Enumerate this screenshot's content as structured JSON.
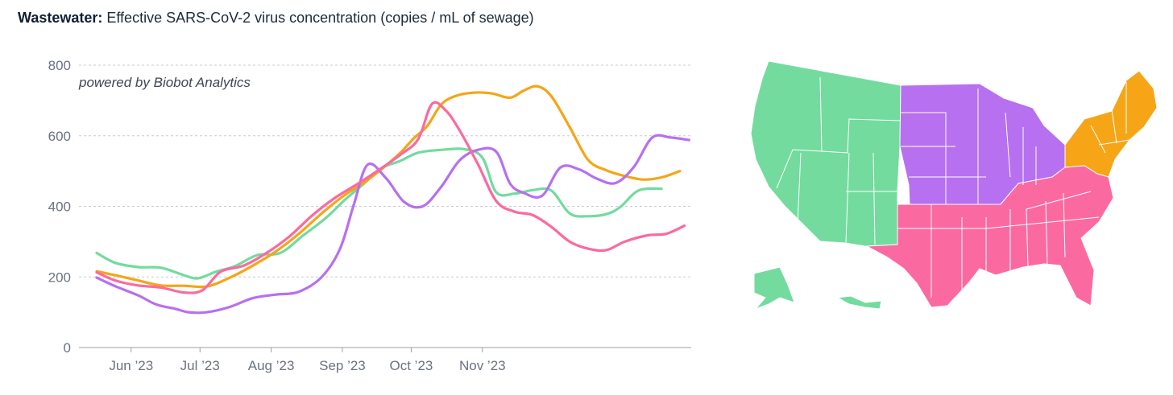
{
  "header": {
    "title_bold": "Wastewater:",
    "title_rest": " Effective SARS-CoV-2 virus concentration (copies / mL of sewage)"
  },
  "chart_data": {
    "type": "line",
    "credit": "powered by Biobot Analytics",
    "x_ticks": [
      "Jun ’23",
      "Jul ’23",
      "Aug ’23",
      "Sep ’23",
      "Oct ’23",
      "Nov ’23"
    ],
    "y_ticks": [
      "0",
      "200",
      "400",
      "600",
      "800"
    ],
    "ylim": [
      0,
      800
    ],
    "grid": "horizontal dashed",
    "legend": "map of US regions (right)",
    "series": [
      {
        "region": "West",
        "color": "#73db9e",
        "points": [
          [
            0,
            268
          ],
          [
            8,
            240
          ],
          [
            18,
            228
          ],
          [
            28,
            226
          ],
          [
            38,
            205
          ],
          [
            44,
            196
          ],
          [
            52,
            215
          ],
          [
            60,
            230
          ],
          [
            70,
            262
          ],
          [
            80,
            268
          ],
          [
            90,
            318
          ],
          [
            100,
            368
          ],
          [
            108,
            418
          ],
          [
            116,
            462
          ],
          [
            124,
            508
          ],
          [
            132,
            528
          ],
          [
            140,
            552
          ],
          [
            150,
            560
          ],
          [
            160,
            562
          ],
          [
            168,
            538
          ],
          [
            174,
            440
          ],
          [
            182,
            436
          ],
          [
            190,
            446
          ],
          [
            198,
            445
          ],
          [
            206,
            380
          ],
          [
            214,
            372
          ],
          [
            222,
            378
          ],
          [
            228,
            398
          ],
          [
            236,
            445
          ],
          [
            246,
            450
          ]
        ]
      },
      {
        "region": "Northeast",
        "color": "#f5a516",
        "points": [
          [
            0,
            216
          ],
          [
            8,
            205
          ],
          [
            18,
            190
          ],
          [
            28,
            176
          ],
          [
            38,
            175
          ],
          [
            48,
            173
          ],
          [
            58,
            198
          ],
          [
            68,
            232
          ],
          [
            78,
            272
          ],
          [
            88,
            322
          ],
          [
            98,
            380
          ],
          [
            108,
            432
          ],
          [
            116,
            465
          ],
          [
            124,
            505
          ],
          [
            132,
            550
          ],
          [
            138,
            592
          ],
          [
            144,
            628
          ],
          [
            150,
            688
          ],
          [
            156,
            712
          ],
          [
            164,
            722
          ],
          [
            172,
            720
          ],
          [
            180,
            708
          ],
          [
            186,
            728
          ],
          [
            192,
            740
          ],
          [
            198,
            712
          ],
          [
            206,
            625
          ],
          [
            214,
            532
          ],
          [
            222,
            502
          ],
          [
            230,
            486
          ],
          [
            238,
            476
          ],
          [
            246,
            482
          ],
          [
            254,
            500
          ]
        ]
      },
      {
        "region": "Midwest",
        "color": "#b670f0",
        "points": [
          [
            0,
            198
          ],
          [
            8,
            174
          ],
          [
            18,
            148
          ],
          [
            26,
            122
          ],
          [
            34,
            110
          ],
          [
            40,
            100
          ],
          [
            48,
            100
          ],
          [
            58,
            115
          ],
          [
            68,
            140
          ],
          [
            78,
            150
          ],
          [
            88,
            158
          ],
          [
            98,
            200
          ],
          [
            106,
            280
          ],
          [
            112,
            405
          ],
          [
            118,
            518
          ],
          [
            126,
            480
          ],
          [
            134,
            412
          ],
          [
            142,
            400
          ],
          [
            150,
            455
          ],
          [
            158,
            530
          ],
          [
            166,
            560
          ],
          [
            174,
            555
          ],
          [
            180,
            465
          ],
          [
            186,
            438
          ],
          [
            194,
            430
          ],
          [
            202,
            510
          ],
          [
            210,
            505
          ],
          [
            218,
            478
          ],
          [
            226,
            466
          ],
          [
            234,
            512
          ],
          [
            242,
            595
          ],
          [
            250,
            595
          ],
          [
            258,
            588
          ]
        ]
      },
      {
        "region": "South",
        "color": "#fa6aa0",
        "points": [
          [
            0,
            213
          ],
          [
            8,
            190
          ],
          [
            18,
            176
          ],
          [
            28,
            170
          ],
          [
            38,
            156
          ],
          [
            46,
            162
          ],
          [
            54,
            215
          ],
          [
            64,
            232
          ],
          [
            74,
            268
          ],
          [
            84,
            315
          ],
          [
            94,
            375
          ],
          [
            104,
            425
          ],
          [
            114,
            465
          ],
          [
            124,
            508
          ],
          [
            132,
            545
          ],
          [
            140,
            590
          ],
          [
            146,
            690
          ],
          [
            152,
            672
          ],
          [
            158,
            616
          ],
          [
            166,
            520
          ],
          [
            174,
            415
          ],
          [
            182,
            385
          ],
          [
            190,
            375
          ],
          [
            198,
            342
          ],
          [
            206,
            300
          ],
          [
            214,
            280
          ],
          [
            222,
            276
          ],
          [
            230,
            300
          ],
          [
            240,
            318
          ],
          [
            248,
            322
          ],
          [
            256,
            345
          ]
        ]
      }
    ]
  },
  "map": {
    "regions": [
      {
        "name": "West",
        "color": "#73db9e"
      },
      {
        "name": "Midwest",
        "color": "#b670f0"
      },
      {
        "name": "Northeast",
        "color": "#f5a516"
      },
      {
        "name": "South",
        "color": "#fa6aa0"
      }
    ]
  }
}
